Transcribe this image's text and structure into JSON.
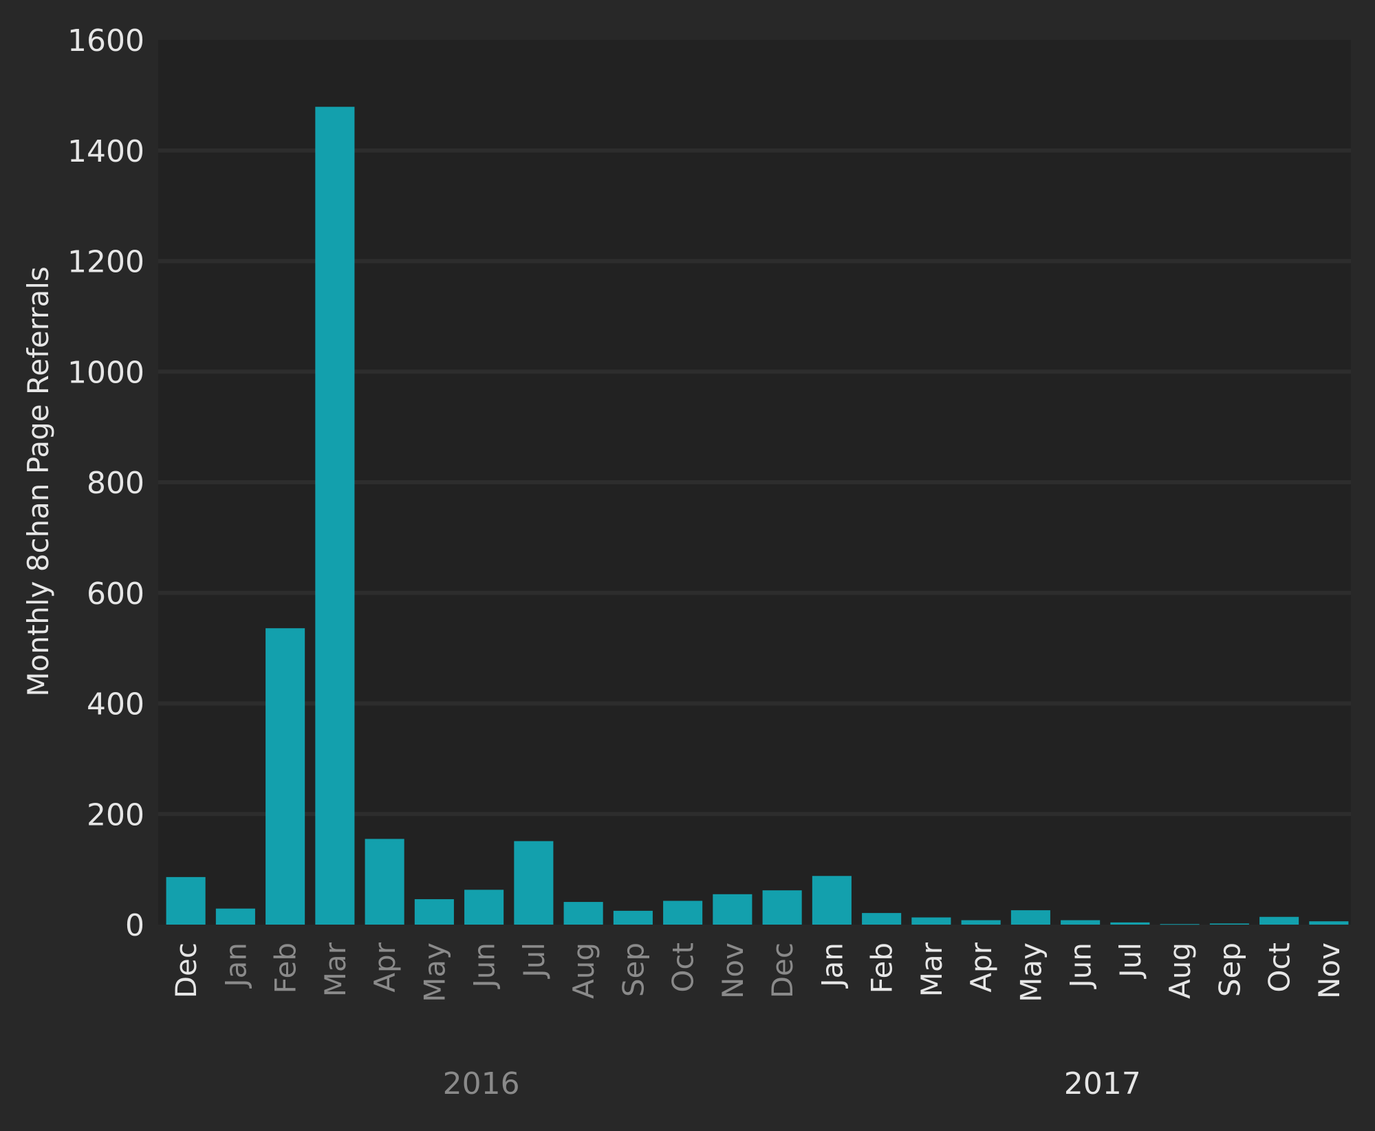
{
  "chart_data": {
    "type": "bar",
    "title": "",
    "xlabel": "",
    "ylabel": "Monthly 8chan Page Referrals",
    "ylim": [
      0,
      1600
    ],
    "yticks": [
      0,
      200,
      400,
      600,
      800,
      1000,
      1200,
      1400,
      1600
    ],
    "grid": true,
    "categories": [
      "Dec",
      "Jan",
      "Feb",
      "Mar",
      "Apr",
      "May",
      "Jun",
      "Jul",
      "Aug",
      "Sep",
      "Oct",
      "Nov",
      "Dec",
      "Jan",
      "Feb",
      "Mar",
      "Apr",
      "May",
      "Jun",
      "Jul",
      "Aug",
      "Sep",
      "Oct",
      "Nov"
    ],
    "values": [
      86,
      29,
      536,
      1479,
      155,
      46,
      63,
      151,
      41,
      25,
      43,
      55,
      62,
      88,
      21,
      13,
      8,
      26,
      8,
      4,
      1,
      2,
      14,
      6
    ],
    "label_highlight": [
      true,
      false,
      false,
      false,
      false,
      false,
      false,
      false,
      false,
      false,
      false,
      false,
      false,
      true,
      true,
      true,
      true,
      true,
      true,
      true,
      true,
      true,
      true,
      true
    ],
    "year_groups": [
      {
        "label": "2016",
        "highlight": false,
        "center_index": 6
      },
      {
        "label": "2017",
        "highlight": true,
        "center_index": 18.5
      }
    ],
    "colors": {
      "bar": "#13a0ad",
      "background": "#282828",
      "plot": "#222222",
      "grid": "#2d2d2d",
      "text": "#e6e6e6",
      "muted": "#8a8a8a"
    }
  }
}
